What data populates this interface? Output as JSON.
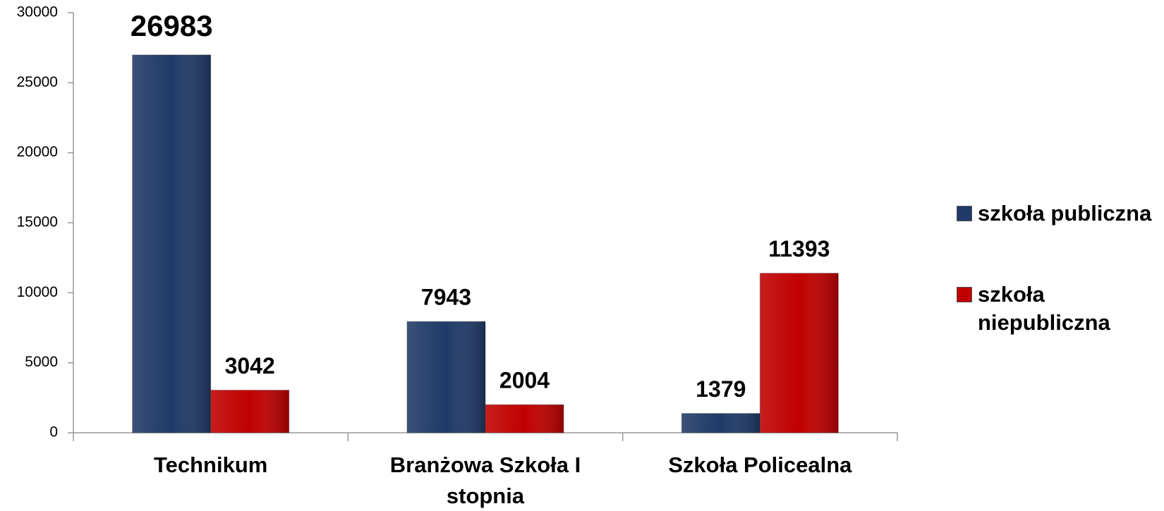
{
  "chart_data": {
    "type": "bar",
    "categories": [
      "Technikum",
      "Branżowa Szkoła I stopnia",
      "Szkoła Policealna"
    ],
    "series": [
      {
        "name": "szkoła publiczna",
        "color": "#1f3a68",
        "values": [
          26983,
          7943,
          1379
        ]
      },
      {
        "name": "szkoła niepubliczna",
        "color": "#c00000",
        "values": [
          3042,
          2004,
          11393
        ]
      }
    ],
    "ylim": [
      0,
      30000
    ],
    "yticks": [
      0,
      5000,
      10000,
      15000,
      20000,
      25000,
      30000
    ],
    "legend": "right"
  }
}
